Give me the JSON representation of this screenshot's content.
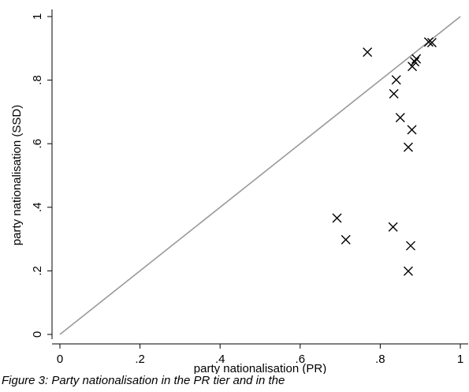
{
  "chart_data": {
    "type": "scatter",
    "xlabel": "party nationalisation (PR)",
    "ylabel": "party nationalisation (SSD)",
    "xlim": [
      0,
      1
    ],
    "ylim": [
      0,
      1
    ],
    "xticks": [
      "0",
      ".2",
      ".4",
      ".6",
      ".8",
      "1"
    ],
    "yticks": [
      "0",
      ".2",
      ".4",
      ".6",
      ".8",
      "1"
    ],
    "xtick_values": [
      0,
      0.2,
      0.4,
      0.6,
      0.8,
      1
    ],
    "ytick_values": [
      0,
      0.2,
      0.4,
      0.6,
      0.8,
      1
    ],
    "grid": false,
    "marker": "x",
    "reference_line": {
      "from": [
        0,
        0
      ],
      "to": [
        1,
        1
      ],
      "color": "#999999"
    },
    "points": [
      {
        "x": 0.768,
        "y": 0.888
      },
      {
        "x": 0.84,
        "y": 0.801
      },
      {
        "x": 0.834,
        "y": 0.757
      },
      {
        "x": 0.85,
        "y": 0.682
      },
      {
        "x": 0.879,
        "y": 0.644
      },
      {
        "x": 0.87,
        "y": 0.589
      },
      {
        "x": 0.921,
        "y": 0.92
      },
      {
        "x": 0.929,
        "y": 0.918
      },
      {
        "x": 0.89,
        "y": 0.867
      },
      {
        "x": 0.886,
        "y": 0.858
      },
      {
        "x": 0.88,
        "y": 0.843
      },
      {
        "x": 0.692,
        "y": 0.366
      },
      {
        "x": 0.714,
        "y": 0.298
      },
      {
        "x": 0.832,
        "y": 0.338
      },
      {
        "x": 0.876,
        "y": 0.279
      },
      {
        "x": 0.87,
        "y": 0.199
      }
    ]
  },
  "caption": "Figure 3: Party nationalisation in the PR tier and in the"
}
